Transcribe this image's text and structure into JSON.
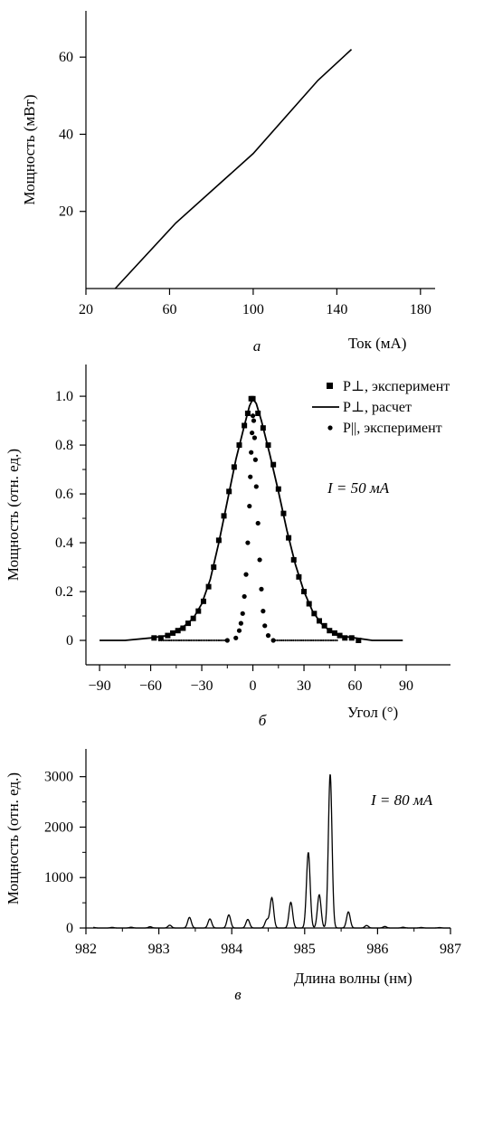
{
  "chart_data": [
    {
      "id": "a",
      "type": "line",
      "panel_label": "а",
      "xlabel": "Ток (мА)",
      "ylabel": "Мощность (мВт)",
      "xlim": [
        20,
        187
      ],
      "ylim": [
        0,
        72
      ],
      "xticks": [
        20,
        60,
        100,
        140,
        180
      ],
      "yticks": [
        20,
        40,
        60
      ],
      "series": [
        {
          "values": [
            [
              34,
              0
            ],
            [
              63,
              17
            ],
            [
              100,
              35
            ],
            [
              131,
              54
            ],
            [
              147,
              62
            ]
          ]
        }
      ]
    },
    {
      "id": "b",
      "type": "line",
      "panel_label": "б",
      "xlabel": "Угол (°)",
      "ylabel": "Мощность (отн. ед.)",
      "xlim": [
        -98,
        116
      ],
      "ylim": [
        -0.1,
        1.13
      ],
      "xticks": [
        -90,
        -60,
        -30,
        0,
        30,
        60,
        90
      ],
      "xtick_labels": [
        "−90",
        "−60",
        "−30",
        "0",
        "30",
        "60",
        "90"
      ],
      "yticks": [
        0,
        0.2,
        0.4,
        0.6,
        0.8,
        1.0
      ],
      "ytick_labels": [
        "0",
        "0.2",
        "0.4",
        "0.6",
        "0.8",
        "1.0"
      ],
      "annotation": "I = 50 мА",
      "legend": [
        {
          "label": "P⊥, эксперимент",
          "marker": "square"
        },
        {
          "label": "P⊥, расчет",
          "marker": "line"
        },
        {
          "label": "P||, эксперимент",
          "marker": "dot"
        }
      ],
      "series": [
        {
          "marker": "square",
          "values": [
            [
              -58,
              0.01
            ],
            [
              -54,
              0.01
            ],
            [
              -50,
              0.02
            ],
            [
              -47,
              0.03
            ],
            [
              -44,
              0.04
            ],
            [
              -41,
              0.05
            ],
            [
              -38,
              0.07
            ],
            [
              -35,
              0.09
            ],
            [
              -32,
              0.12
            ],
            [
              -29,
              0.16
            ],
            [
              -26,
              0.22
            ],
            [
              -23,
              0.3
            ],
            [
              -20,
              0.41
            ],
            [
              -17,
              0.51
            ],
            [
              -14,
              0.61
            ],
            [
              -11,
              0.71
            ],
            [
              -8,
              0.8
            ],
            [
              -5,
              0.88
            ],
            [
              -3,
              0.93
            ],
            [
              -1,
              0.99
            ],
            [
              0,
              0.99
            ],
            [
              3,
              0.93
            ],
            [
              6,
              0.87
            ],
            [
              9,
              0.8
            ],
            [
              12,
              0.72
            ],
            [
              15,
              0.62
            ],
            [
              18,
              0.52
            ],
            [
              21,
              0.42
            ],
            [
              24,
              0.33
            ],
            [
              27,
              0.26
            ],
            [
              30,
              0.2
            ],
            [
              33,
              0.15
            ],
            [
              36,
              0.11
            ],
            [
              39,
              0.08
            ],
            [
              42,
              0.06
            ],
            [
              45,
              0.04
            ],
            [
              48,
              0.03
            ],
            [
              51,
              0.02
            ],
            [
              54,
              0.01
            ],
            [
              58,
              0.01
            ],
            [
              62,
              0.0
            ]
          ]
        },
        {
          "marker": "line",
          "values": [
            [
              -90,
              0.0
            ],
            [
              -75,
              0.0
            ],
            [
              -60,
              0.01
            ],
            [
              -50,
              0.02
            ],
            [
              -45,
              0.04
            ],
            [
              -40,
              0.06
            ],
            [
              -35,
              0.09
            ],
            [
              -30,
              0.15
            ],
            [
              -25,
              0.25
            ],
            [
              -20,
              0.4
            ],
            [
              -15,
              0.57
            ],
            [
              -10,
              0.74
            ],
            [
              -5,
              0.88
            ],
            [
              -2,
              0.96
            ],
            [
              0,
              0.99
            ],
            [
              2,
              0.97
            ],
            [
              5,
              0.9
            ],
            [
              10,
              0.76
            ],
            [
              15,
              0.61
            ],
            [
              20,
              0.45
            ],
            [
              25,
              0.31
            ],
            [
              30,
              0.2
            ],
            [
              35,
              0.12
            ],
            [
              40,
              0.07
            ],
            [
              45,
              0.04
            ],
            [
              50,
              0.02
            ],
            [
              60,
              0.01
            ],
            [
              70,
              0.0
            ],
            [
              88,
              0.0
            ]
          ]
        },
        {
          "marker": "dot",
          "values": [
            [
              -15,
              0.0
            ],
            [
              -10,
              0.01
            ],
            [
              -8,
              0.04
            ],
            [
              -7,
              0.07
            ],
            [
              -6,
              0.11
            ],
            [
              -5,
              0.18
            ],
            [
              -4,
              0.27
            ],
            [
              -3,
              0.4
            ],
            [
              -2,
              0.55
            ],
            [
              -1.5,
              0.67
            ],
            [
              -1,
              0.77
            ],
            [
              -0.5,
              0.85
            ],
            [
              0,
              0.92
            ],
            [
              0.5,
              0.9
            ],
            [
              1,
              0.83
            ],
            [
              1.5,
              0.74
            ],
            [
              2,
              0.63
            ],
            [
              3,
              0.48
            ],
            [
              4,
              0.33
            ],
            [
              5,
              0.21
            ],
            [
              6,
              0.12
            ],
            [
              7,
              0.06
            ],
            [
              9,
              0.02
            ],
            [
              12,
              0.0
            ]
          ]
        },
        {
          "marker": "dot_baseline",
          "values": [
            [
              -55,
              0.0
            ],
            [
              -15,
              0.0
            ],
            [
              12,
              0.0
            ],
            [
              50,
              0.0
            ]
          ]
        }
      ]
    },
    {
      "id": "c",
      "type": "line",
      "panel_label": "в",
      "xlabel": "Длина волны (нм)",
      "ylabel": "Мощность (отн. ед.)",
      "xlim": [
        982,
        987
      ],
      "ylim": [
        0,
        3550
      ],
      "xticks": [
        982,
        983,
        984,
        985,
        986,
        987
      ],
      "yticks": [
        0,
        1000,
        2000,
        3000
      ],
      "annotation": "I = 80 мА",
      "series": [
        {
          "peaks": [
            [
              982.1,
              12
            ],
            [
              982.36,
              12
            ],
            [
              982.62,
              15
            ],
            [
              982.88,
              25
            ],
            [
              983.15,
              55
            ],
            [
              983.42,
              210
            ],
            [
              983.7,
              180
            ],
            [
              983.96,
              260
            ],
            [
              984.22,
              170
            ],
            [
              984.48,
              160
            ],
            [
              984.55,
              600
            ],
            [
              984.81,
              510
            ],
            [
              985.05,
              1500
            ],
            [
              985.2,
              660
            ],
            [
              985.35,
              3050
            ],
            [
              985.6,
              320
            ],
            [
              985.85,
              50
            ],
            [
              986.1,
              30
            ],
            [
              986.35,
              15
            ],
            [
              986.6,
              10
            ],
            [
              986.85,
              8
            ]
          ]
        }
      ]
    }
  ]
}
